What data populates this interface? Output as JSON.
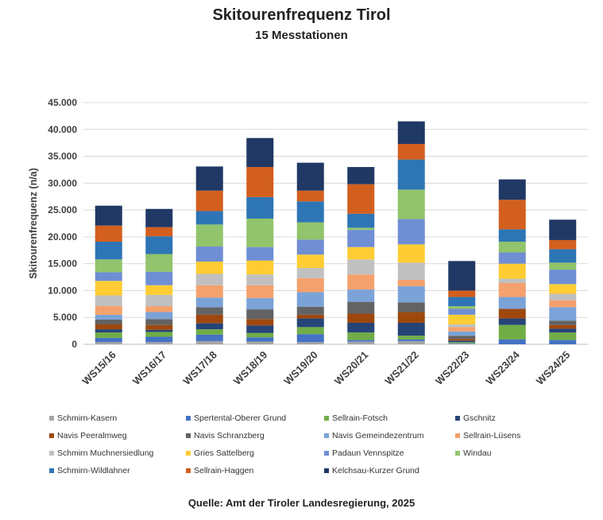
{
  "chart_data": {
    "type": "stacked-bar",
    "title": "Skitourenfrequenz Tirol",
    "subtitle": "15 Messtationen",
    "ylabel": "Skitourenfrequenz (n/a)",
    "xlabel": "",
    "ylim": [
      0,
      45000
    ],
    "yticks": [
      "0",
      "5.000",
      "10.000",
      "15.000",
      "20.000",
      "25.000",
      "30.000",
      "35.000",
      "40.000",
      "45.000"
    ],
    "ytick_values": [
      0,
      5000,
      10000,
      15000,
      20000,
      25000,
      30000,
      35000,
      40000,
      45000
    ],
    "grid": true,
    "legend_position": "bottom",
    "categories": [
      "WS15/16",
      "WS16/17",
      "WS17/18",
      "WS18/19",
      "WS19/20",
      "WS20/21",
      "WS21/22",
      "WS22/23",
      "WS23/24",
      "WS24/25"
    ],
    "series": [
      {
        "name": "Schmirn-Kasern",
        "color": "#a5a5a5",
        "values": [
          400,
          400,
          600,
          500,
          400,
          500,
          600,
          100,
          0,
          0
        ]
      },
      {
        "name": "Spertental-Oberer Grund",
        "color": "#4472c4",
        "values": [
          800,
          1000,
          1200,
          800,
          1500,
          300,
          300,
          100,
          900,
          800
        ]
      },
      {
        "name": "Sellrain-Fotsch",
        "color": "#70ad47",
        "values": [
          1000,
          900,
          1000,
          800,
          1300,
          1400,
          700,
          200,
          2700,
          1400
        ]
      },
      {
        "name": "Gschnitz",
        "color": "#264478",
        "values": [
          600,
          400,
          1100,
          1400,
          1600,
          1800,
          2400,
          300,
          1200,
          700
        ]
      },
      {
        "name": "Navis Peeralmweg",
        "color": "#9e480e",
        "values": [
          900,
          900,
          1600,
          1200,
          700,
          1700,
          2000,
          300,
          1800,
          700
        ]
      },
      {
        "name": "Navis Schranzberg",
        "color": "#636363",
        "values": [
          900,
          1100,
          1400,
          1800,
          1500,
          2200,
          1800,
          600,
          0,
          800
        ]
      },
      {
        "name": "Navis Gemeindezentrum",
        "color": "#7ba3d8",
        "values": [
          900,
          1300,
          1800,
          2100,
          2700,
          2300,
          3000,
          800,
          2200,
          2500
        ]
      },
      {
        "name": "Sellrain-Lüsens",
        "color": "#f4a16d",
        "values": [
          1600,
          1100,
          2300,
          2400,
          2600,
          2800,
          1200,
          800,
          2600,
          1300
        ]
      },
      {
        "name": "Schmirn Muchnersiedlung",
        "color": "#c0c0c0",
        "values": [
          2000,
          2100,
          2100,
          2000,
          1900,
          2800,
          3200,
          500,
          800,
          1200
        ]
      },
      {
        "name": "Gries Sattelberg",
        "color": "#ffcd33",
        "values": [
          2700,
          1800,
          2300,
          2600,
          2500,
          2300,
          3400,
          1800,
          2800,
          1800
        ]
      },
      {
        "name": "Padaun Vennspitze",
        "color": "#6f8ed4",
        "values": [
          1600,
          2500,
          2800,
          2500,
          2800,
          3200,
          4700,
          1100,
          2100,
          2700
        ]
      },
      {
        "name": "Windau",
        "color": "#91c46c",
        "values": [
          2400,
          3300,
          4100,
          5300,
          3200,
          400,
          5500,
          500,
          2000,
          1300
        ]
      },
      {
        "name": "Schmirn-Wildlahner",
        "color": "#2e75b6",
        "values": [
          3300,
          3300,
          2500,
          4000,
          3900,
          2600,
          5600,
          1700,
          2300,
          2500
        ]
      },
      {
        "name": "Sellrain-Haggen",
        "color": "#d35f1f",
        "values": [
          3000,
          1700,
          3800,
          5600,
          2000,
          5500,
          2900,
          1200,
          5500,
          1700
        ]
      },
      {
        "name": "Kelchsau-Kurzer Grund",
        "color": "#203864",
        "values": [
          3700,
          3400,
          4500,
          5400,
          5200,
          3200,
          4200,
          5500,
          3800,
          3800
        ]
      }
    ],
    "source": "Quelle: Amt der Tiroler Landesregierung, 2025"
  }
}
